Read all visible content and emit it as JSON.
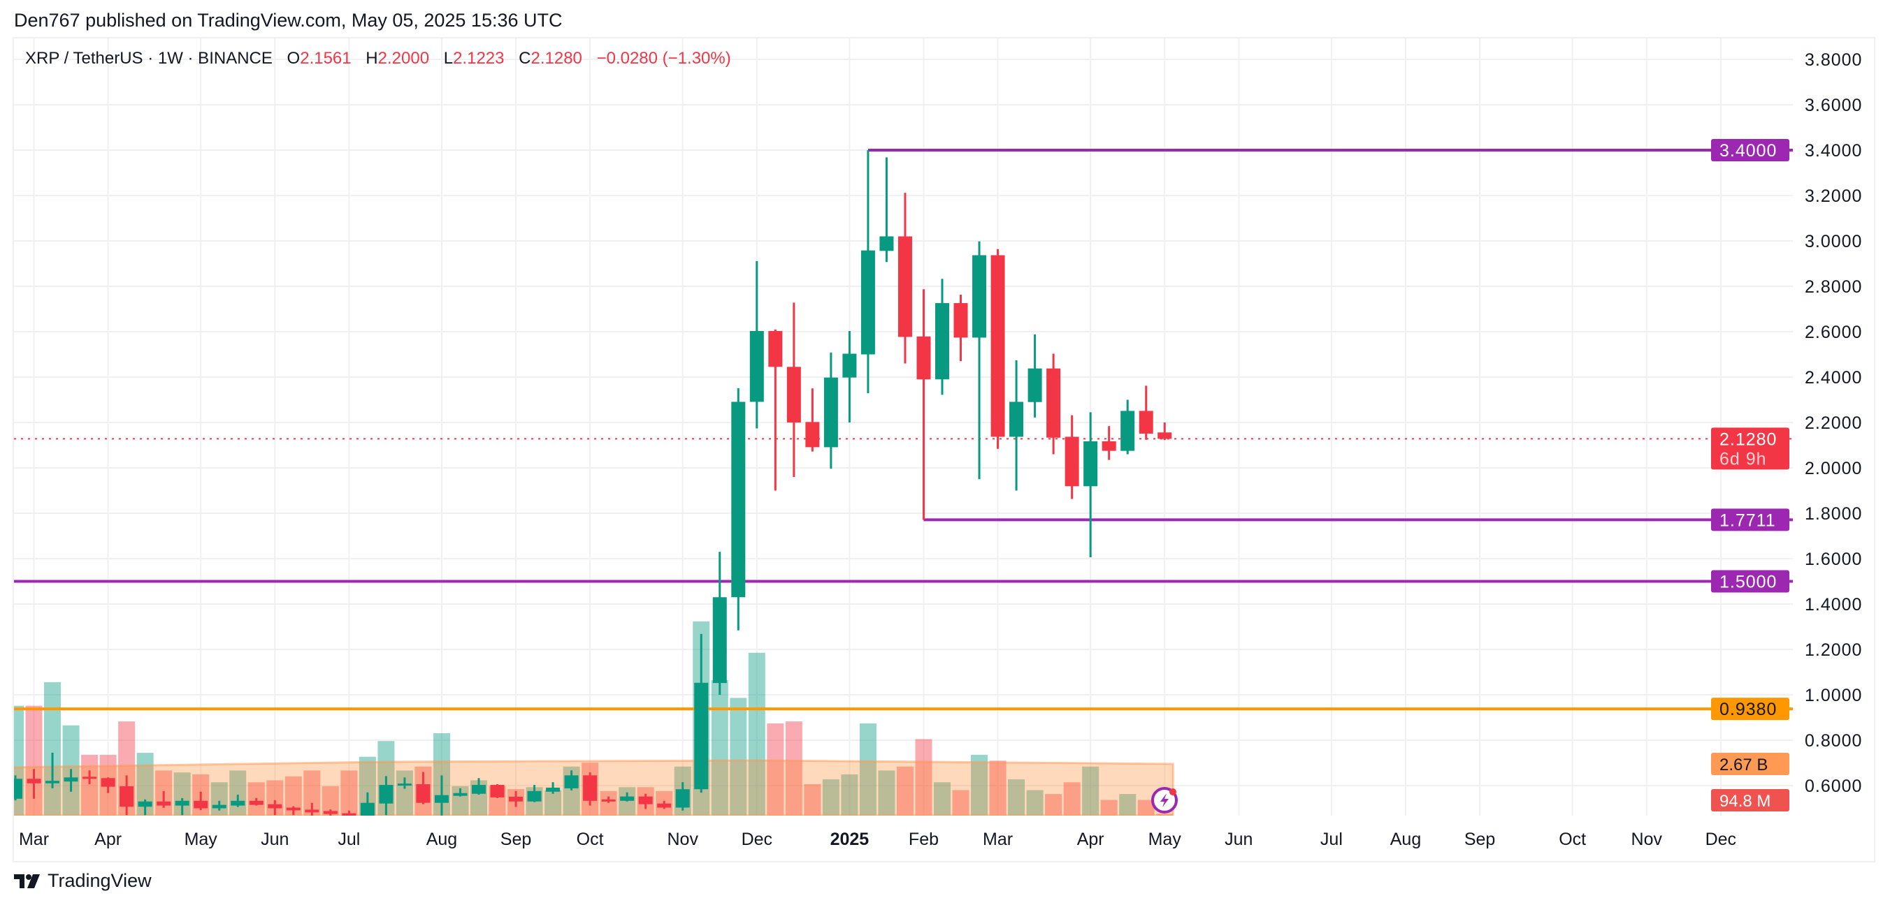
{
  "publisher_line": "Den767 published on TradingView.com, May 05, 2025 15:36 UTC",
  "legend": {
    "symbol": "XRP / TetherUS · 1W · BINANCE",
    "o_label": "O",
    "o_value": "2.1561",
    "h_label": "H",
    "h_value": "2.2000",
    "l_label": "L",
    "l_value": "2.1223",
    "c_label": "C",
    "c_value": "2.1280",
    "change": "−0.0280 (−1.30%)"
  },
  "colors": {
    "up": "#089981",
    "down": "#f23645",
    "level": "#9c27b0",
    "support": "#ff9800",
    "volume_ma": "#ff9a55",
    "text": "#131722"
  },
  "badges": {
    "level_high": "3.4000",
    "last_price": "2.1280",
    "countdown": "6d 9h",
    "level_mid": "1.7711",
    "level_low": "1.5000",
    "support": "0.9380",
    "volume_ma": "2.67 B",
    "volume_last": "94.8 M"
  },
  "logo_text": "TradingView",
  "chart_data": {
    "type": "candlestick",
    "title": "XRP / TetherUS · 1W · BINANCE",
    "interval": "1W",
    "ylim": [
      0.468,
      3.9
    ],
    "y_ticks": [
      "3.8000",
      "3.6000",
      "3.4000",
      "3.2000",
      "3.0000",
      "2.8000",
      "2.6000",
      "2.4000",
      "2.2000",
      "2.0000",
      "1.8000",
      "1.6000",
      "1.4000",
      "1.2000",
      "1.0000",
      "0.8000",
      "0.6000"
    ],
    "x_tick_labels": [
      "Mar",
      "Apr",
      "May",
      "Jun",
      "Jul",
      "Aug",
      "Sep",
      "Oct",
      "Nov",
      "Dec",
      "2025",
      "Feb",
      "Mar",
      "Apr",
      "May",
      "Jun",
      "Jul",
      "Aug",
      "Sep",
      "Oct",
      "Nov",
      "Dec"
    ],
    "grid": true,
    "horizontal_levels": [
      {
        "price": 3.4,
        "color": "#9c27b0"
      },
      {
        "price": 1.7711,
        "color": "#9c27b0"
      },
      {
        "price": 1.5,
        "color": "#9c27b0"
      },
      {
        "price": 0.938,
        "color": "#ff9800"
      }
    ],
    "last_price": 2.128,
    "volume_unit": "B",
    "volume_ma": 2.67,
    "candles_ohlcv": [
      [
        0.542,
        0.645,
        0.535,
        0.63,
        5.6
      ],
      [
        0.63,
        0.673,
        0.542,
        0.61,
        5.6
      ],
      [
        0.61,
        0.745,
        0.588,
        0.621,
        6.8
      ],
      [
        0.618,
        0.673,
        0.573,
        0.636,
        4.6
      ],
      [
        0.639,
        0.667,
        0.606,
        0.633,
        3.1
      ],
      [
        0.633,
        0.636,
        0.567,
        0.595,
        3.1
      ],
      [
        0.597,
        0.645,
        0.47,
        0.507,
        4.8
      ],
      [
        0.507,
        0.539,
        0.47,
        0.53,
        3.2
      ],
      [
        0.53,
        0.576,
        0.502,
        0.512,
        2.3
      ],
      [
        0.512,
        0.545,
        0.47,
        0.533,
        2.2
      ],
      [
        0.533,
        0.573,
        0.492,
        0.5,
        2.1
      ],
      [
        0.5,
        0.533,
        0.49,
        0.515,
        1.7
      ],
      [
        0.512,
        0.56,
        0.506,
        0.533,
        2.3
      ],
      [
        0.533,
        0.545,
        0.512,
        0.515,
        1.7
      ],
      [
        0.518,
        0.536,
        0.47,
        0.5,
        1.8
      ],
      [
        0.503,
        0.509,
        0.47,
        0.491,
        2.0
      ],
      [
        0.494,
        0.524,
        0.465,
        0.482,
        2.3
      ],
      [
        0.488,
        0.495,
        0.465,
        0.475,
        1.5
      ],
      [
        0.478,
        0.49,
        0.38,
        0.44,
        2.3
      ],
      [
        0.44,
        0.57,
        0.43,
        0.524,
        3.0
      ],
      [
        0.521,
        0.642,
        0.47,
        0.603,
        3.8
      ],
      [
        0.603,
        0.636,
        0.586,
        0.609,
        2.3
      ],
      [
        0.606,
        0.66,
        0.518,
        0.524,
        2.5
      ],
      [
        0.524,
        0.645,
        0.43,
        0.558,
        4.2
      ],
      [
        0.555,
        0.588,
        0.552,
        0.567,
        1.5
      ],
      [
        0.564,
        0.633,
        0.56,
        0.603,
        1.8
      ],
      [
        0.603,
        0.606,
        0.545,
        0.548,
        1.5
      ],
      [
        0.551,
        0.576,
        0.506,
        0.53,
        1.35
      ],
      [
        0.53,
        0.603,
        0.527,
        0.576,
        1.45
      ],
      [
        0.573,
        0.615,
        0.564,
        0.591,
        1.3
      ],
      [
        0.588,
        0.667,
        0.579,
        0.645,
        2.5
      ],
      [
        0.645,
        0.658,
        0.512,
        0.533,
        2.7
      ],
      [
        0.539,
        0.552,
        0.524,
        0.533,
        1.25
      ],
      [
        0.533,
        0.57,
        0.53,
        0.552,
        1.45
      ],
      [
        0.552,
        0.564,
        0.497,
        0.518,
        1.45
      ],
      [
        0.521,
        0.533,
        0.497,
        0.503,
        1.25
      ],
      [
        0.503,
        0.615,
        0.49,
        0.584,
        2.5
      ],
      [
        0.584,
        1.268,
        0.569,
        1.053,
        9.9
      ],
      [
        1.052,
        1.63,
        1.0,
        1.43,
        6.9
      ],
      [
        1.43,
        2.351,
        1.284,
        2.291,
        6.0
      ],
      [
        2.291,
        2.911,
        2.174,
        2.603,
        8.3
      ],
      [
        2.603,
        2.61,
        1.9,
        2.445,
        4.7
      ],
      [
        2.445,
        2.728,
        1.96,
        2.2,
        4.8
      ],
      [
        2.202,
        2.35,
        2.072,
        2.091,
        1.6
      ],
      [
        2.091,
        2.508,
        1.996,
        2.398,
        1.85
      ],
      [
        2.398,
        2.603,
        2.2,
        2.503,
        2.1
      ],
      [
        2.5,
        3.4,
        2.329,
        2.958,
        4.7
      ],
      [
        2.956,
        3.368,
        2.907,
        3.02,
        2.3
      ],
      [
        3.02,
        3.212,
        2.46,
        2.577,
        2.5
      ],
      [
        2.579,
        2.787,
        1.7711,
        2.39,
        3.9
      ],
      [
        2.39,
        2.833,
        2.322,
        2.726,
        1.7
      ],
      [
        2.726,
        2.763,
        2.47,
        2.574,
        1.3
      ],
      [
        2.574,
        2.998,
        1.95,
        2.937,
        3.1
      ],
      [
        2.937,
        2.964,
        2.084,
        2.137,
        2.8
      ],
      [
        2.137,
        2.474,
        1.9,
        2.291,
        1.85
      ],
      [
        2.29,
        2.588,
        2.222,
        2.438,
        1.3
      ],
      [
        2.438,
        2.503,
        2.06,
        2.133,
        1.1
      ],
      [
        2.137,
        2.232,
        1.863,
        1.919,
        1.7
      ],
      [
        1.919,
        2.245,
        1.606,
        2.117,
        2.5
      ],
      [
        2.117,
        2.184,
        2.035,
        2.075,
        0.8
      ],
      [
        2.075,
        2.3,
        2.06,
        2.251,
        1.1
      ],
      [
        2.251,
        2.362,
        2.124,
        2.151,
        0.8
      ],
      [
        2.1561,
        2.2,
        2.1223,
        2.128,
        0.0948
      ]
    ]
  }
}
